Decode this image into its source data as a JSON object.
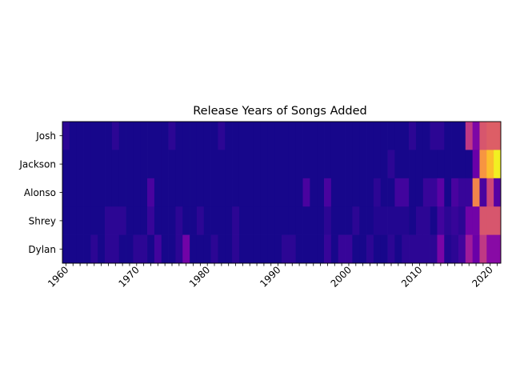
{
  "chart_data": {
    "type": "heatmap",
    "title": "Release Years of Songs Added",
    "xlabel": "",
    "ylabel": "",
    "x_start": 1960,
    "x_end": 2021,
    "x_tick_labels": [
      "1960",
      "1970",
      "1980",
      "1990",
      "2000",
      "2010",
      "2020"
    ],
    "y_categories": [
      "Josh",
      "Jackson",
      "Alonso",
      "Shrey",
      "Dylan"
    ],
    "colormap": "plasma",
    "value_range": [
      0,
      1
    ],
    "grid": false,
    "legend": "none",
    "values": [
      [
        0.06,
        0.02,
        0.02,
        0.02,
        0.02,
        0.02,
        0.02,
        0.06,
        0.02,
        0.02,
        0.02,
        0.02,
        0.02,
        0.02,
        0.02,
        0.06,
        0.02,
        0.02,
        0.02,
        0.02,
        0.02,
        0.02,
        0.06,
        0.02,
        0.02,
        0.02,
        0.02,
        0.02,
        0.02,
        0.02,
        0.02,
        0.02,
        0.02,
        0.02,
        0.02,
        0.02,
        0.02,
        0.02,
        0.02,
        0.02,
        0.02,
        0.02,
        0.02,
        0.02,
        0.02,
        0.02,
        0.02,
        0.02,
        0.02,
        0.06,
        0.02,
        0.02,
        0.06,
        0.06,
        0.02,
        0.02,
        0.02,
        0.02,
        0.02,
        0.02,
        0.02,
        0.06
      ],
      [
        0.02,
        0.02,
        0.02,
        0.02,
        0.02,
        0.02,
        0.02,
        0.02,
        0.02,
        0.02,
        0.02,
        0.02,
        0.02,
        0.02,
        0.02,
        0.02,
        0.02,
        0.02,
        0.02,
        0.02,
        0.02,
        0.02,
        0.02,
        0.02,
        0.02,
        0.02,
        0.02,
        0.02,
        0.02,
        0.02,
        0.02,
        0.02,
        0.02,
        0.02,
        0.02,
        0.02,
        0.02,
        0.02,
        0.02,
        0.02,
        0.02,
        0.02,
        0.02,
        0.02,
        0.02,
        0.02,
        0.06,
        0.02,
        0.02,
        0.02,
        0.02,
        0.02,
        0.02,
        0.02,
        0.02,
        0.02,
        0.02,
        0.02,
        0.02,
        0.02,
        0.02,
        0.02
      ],
      [
        0.02,
        0.02,
        0.02,
        0.02,
        0.02,
        0.02,
        0.02,
        0.02,
        0.02,
        0.02,
        0.02,
        0.02,
        0.12,
        0.02,
        0.02,
        0.02,
        0.02,
        0.02,
        0.02,
        0.02,
        0.02,
        0.02,
        0.02,
        0.02,
        0.02,
        0.02,
        0.02,
        0.02,
        0.02,
        0.02,
        0.02,
        0.02,
        0.02,
        0.02,
        0.12,
        0.02,
        0.02,
        0.12,
        0.02,
        0.02,
        0.02,
        0.02,
        0.02,
        0.02,
        0.06,
        0.02,
        0.02,
        0.1,
        0.1,
        0.02,
        0.02,
        0.08,
        0.08,
        0.16,
        0.02,
        0.12,
        0.08,
        0.08,
        0.02,
        0.02,
        0.02,
        0.02
      ],
      [
        0.02,
        0.02,
        0.02,
        0.02,
        0.02,
        0.02,
        0.06,
        0.06,
        0.06,
        0.02,
        0.02,
        0.02,
        0.08,
        0.02,
        0.02,
        0.02,
        0.06,
        0.02,
        0.02,
        0.06,
        0.02,
        0.02,
        0.02,
        0.02,
        0.06,
        0.02,
        0.02,
        0.02,
        0.02,
        0.02,
        0.02,
        0.02,
        0.02,
        0.02,
        0.02,
        0.02,
        0.02,
        0.06,
        0.02,
        0.02,
        0.02,
        0.06,
        0.02,
        0.02,
        0.04,
        0.04,
        0.04,
        0.04,
        0.04,
        0.02,
        0.06,
        0.06,
        0.02,
        0.1,
        0.06,
        0.08,
        0.06,
        0.02,
        0.02,
        0.02,
        0.02,
        0.02
      ],
      [
        0.02,
        0.02,
        0.02,
        0.02,
        0.06,
        0.02,
        0.06,
        0.06,
        0.02,
        0.02,
        0.06,
        0.06,
        0.02,
        0.1,
        0.02,
        0.02,
        0.06,
        0.22,
        0.02,
        0.02,
        0.02,
        0.06,
        0.02,
        0.02,
        0.06,
        0.02,
        0.02,
        0.02,
        0.02,
        0.02,
        0.02,
        0.06,
        0.06,
        0.02,
        0.02,
        0.02,
        0.02,
        0.08,
        0.02,
        0.08,
        0.08,
        0.02,
        0.02,
        0.06,
        0.02,
        0.02,
        0.06,
        0.02,
        0.06,
        0.06,
        0.06,
        0.06,
        0.06,
        0.24,
        0.04,
        0.06,
        0.1,
        0.1,
        0.1,
        0.16,
        0.18,
        0.16
      ]
    ],
    "overrides": [
      {
        "row": 0,
        "year": 2017,
        "value": 0.45
      },
      {
        "row": 0,
        "year": 2018,
        "value": 0.25
      },
      {
        "row": 0,
        "year": 2019,
        "value": 0.55
      },
      {
        "row": 0,
        "year": 2020,
        "value": 0.58
      },
      {
        "row": 0,
        "year": 2021,
        "value": 0.58
      },
      {
        "row": 1,
        "year": 2018,
        "value": 0.2
      },
      {
        "row": 1,
        "year": 2019,
        "value": 0.75
      },
      {
        "row": 1,
        "year": 2020,
        "value": 0.86
      },
      {
        "row": 1,
        "year": 2021,
        "value": 0.98
      },
      {
        "row": 2,
        "year": 2018,
        "value": 0.7
      },
      {
        "row": 2,
        "year": 2019,
        "value": 0.12
      },
      {
        "row": 2,
        "year": 2020,
        "value": 0.5
      },
      {
        "row": 2,
        "year": 2021,
        "value": 0.15
      },
      {
        "row": 3,
        "year": 2017,
        "value": 0.22
      },
      {
        "row": 3,
        "year": 2018,
        "value": 0.22
      },
      {
        "row": 3,
        "year": 2019,
        "value": 0.55
      },
      {
        "row": 3,
        "year": 2020,
        "value": 0.55
      },
      {
        "row": 3,
        "year": 2021,
        "value": 0.55
      },
      {
        "row": 4,
        "year": 2017,
        "value": 0.35
      },
      {
        "row": 4,
        "year": 2018,
        "value": 0.2
      },
      {
        "row": 4,
        "year": 2019,
        "value": 0.45
      },
      {
        "row": 4,
        "year": 2020,
        "value": 0.28
      },
      {
        "row": 4,
        "year": 2021,
        "value": 0.28
      }
    ]
  }
}
